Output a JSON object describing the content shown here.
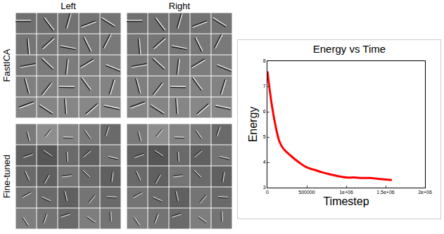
{
  "figure": {
    "column_labels": [
      "Left",
      "Right"
    ],
    "row_labels": [
      "FastICA",
      "Fine-tuned"
    ]
  },
  "chart_data": {
    "type": "line",
    "title": "Energy vs Time",
    "x_label": "Timestep",
    "y_label": "Energy",
    "x": [
      0,
      50000,
      100000,
      150000,
      200000,
      300000,
      400000,
      500000,
      600000,
      700000,
      800000,
      900000,
      1000000,
      1100000,
      1200000,
      1300000,
      1400000,
      1500000,
      1580000
    ],
    "values": [
      7.6,
      6.4,
      5.5,
      4.85,
      4.55,
      4.25,
      4.0,
      3.8,
      3.7,
      3.6,
      3.52,
      3.45,
      3.4,
      3.4,
      3.38,
      3.38,
      3.35,
      3.32,
      3.3
    ],
    "color": "#ff0000",
    "xlim": [
      0,
      2000000
    ],
    "xticks": [
      0,
      500000,
      {
        "value": 1000000,
        "label": "1e+06"
      },
      {
        "value": 1500000,
        "label": "1.5e+06"
      },
      {
        "value": 2000000,
        "label": "2e+06"
      }
    ],
    "ylim": [
      3,
      8
    ],
    "yticks": [
      3,
      4,
      5,
      6,
      7,
      8
    ],
    "grid": false
  }
}
